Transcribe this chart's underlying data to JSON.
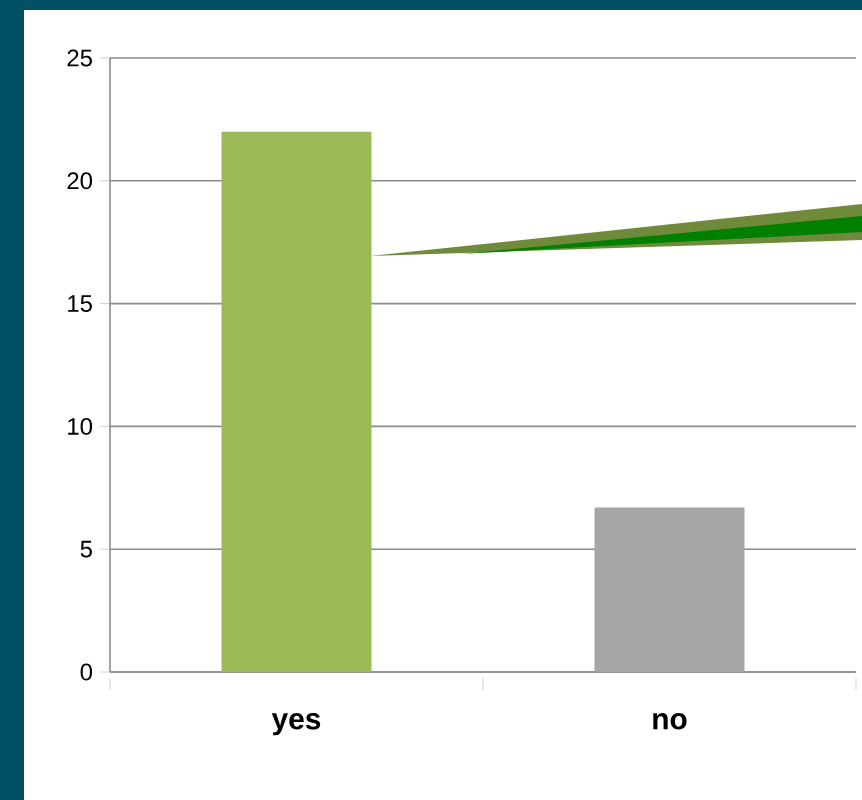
{
  "chart_data": {
    "type": "bar",
    "categories": [
      "yes",
      "no"
    ],
    "values": [
      22,
      6.7
    ],
    "colors": [
      "#9bbb59",
      "#a6a6a6"
    ],
    "ylim": [
      0,
      25
    ],
    "yticks": [
      0,
      5,
      10,
      15,
      20,
      25
    ],
    "grid": "y"
  }
}
